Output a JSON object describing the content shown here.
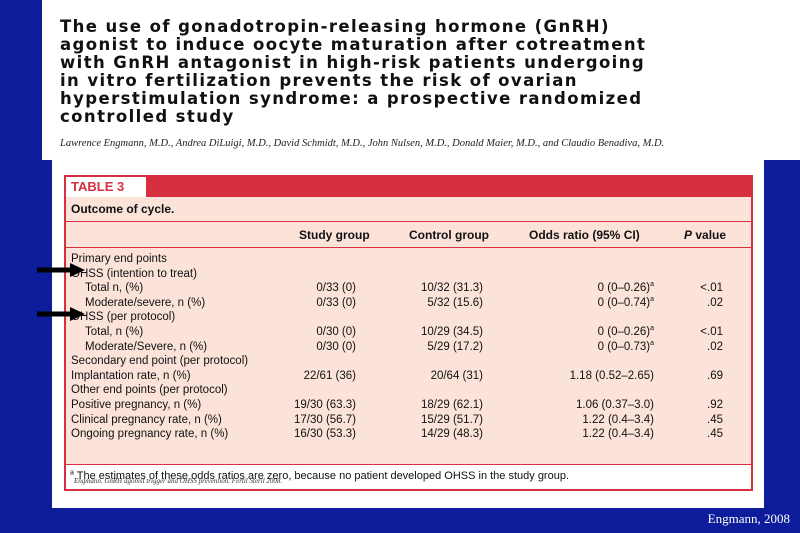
{
  "paper": {
    "title": "The use of gonadotropin-releasing hormone (GnRH)\nagonist to induce oocyte maturation after cotreatment\nwith GnRH antagonist in high-risk patients undergoing\nin vitro fertilization prevents the risk of ovarian\nhyperstimulation syndrome: a prospective randomized\ncontrolled study",
    "authors": "Lawrence Engmann, M.D., Andrea DiLuigi, M.D., David Schmidt, M.D., John Nulsen, M.D., Donald Maier, M.D., and Claudio Benadiva, M.D."
  },
  "table": {
    "label": "TABLE 3",
    "caption": "Outcome of cycle.",
    "headers": {
      "study": "Study group",
      "control": "Control group",
      "odds": "Odds ratio (95% CI)",
      "p": "P",
      "p_suffix": " value"
    },
    "rows": [
      {
        "label": "Primary end points",
        "indent": false,
        "study": "",
        "control": "",
        "odds": "",
        "sup": "",
        "p": ""
      },
      {
        "label": "OHSS (intention to treat)",
        "indent": false,
        "study": "",
        "control": "",
        "odds": "",
        "sup": "",
        "p": ""
      },
      {
        "label": "Total n, (%)",
        "indent": true,
        "study": "0/33 (0)",
        "control": "10/32 (31.3)",
        "odds": "0 (0–0.26)",
        "sup": "a",
        "p": "<.01"
      },
      {
        "label": "Moderate/severe, n (%)",
        "indent": true,
        "study": "0/33 (0)",
        "control": "5/32 (15.6)",
        "odds": "0 (0–0.74)",
        "sup": "a",
        "p": ".02"
      },
      {
        "label": "OHSS (per protocol)",
        "indent": false,
        "study": "",
        "control": "",
        "odds": "",
        "sup": "",
        "p": ""
      },
      {
        "label": "Total, n (%)",
        "indent": true,
        "study": "0/30 (0)",
        "control": "10/29 (34.5)",
        "odds": "0 (0–0.26)",
        "sup": "a",
        "p": "<.01"
      },
      {
        "label": "Moderate/Severe, n (%)",
        "indent": true,
        "study": "0/30 (0)",
        "control": "5/29 (17.2)",
        "odds": "0 (0–0.73)",
        "sup": "a",
        "p": ".02"
      },
      {
        "label": "Secondary end point (per protocol)",
        "indent": false,
        "study": "",
        "control": "",
        "odds": "",
        "sup": "",
        "p": ""
      },
      {
        "label": "Implantation rate, n (%)",
        "indent": false,
        "study": "22/61 (36)",
        "control": "20/64 (31)",
        "odds": "1.18 (0.52–2.65)",
        "sup": "",
        "p": ".69"
      },
      {
        "label": "Other end points (per protocol)",
        "indent": false,
        "study": "",
        "control": "",
        "odds": "",
        "sup": "",
        "p": ""
      },
      {
        "label": "Positive pregnancy, n (%)",
        "indent": false,
        "study": "19/30 (63.3)",
        "control": "18/29 (62.1)",
        "odds": "1.06 (0.37–3.0)",
        "sup": "",
        "p": ".92"
      },
      {
        "label": "Clinical pregnancy rate, n (%)",
        "indent": false,
        "study": "17/30 (56.7)",
        "control": "15/29 (51.7)",
        "odds": "1.22 (0.4–3.4)",
        "sup": "",
        "p": ".45"
      },
      {
        "label": "Ongoing pregnancy rate, n (%)",
        "indent": false,
        "study": "16/30 (53.3)",
        "control": "14/29 (48.3)",
        "odds": "1.22 (0.4–3.4)",
        "sup": "",
        "p": ".45"
      }
    ],
    "footnote_marker": "a",
    "footnote": " The estimates of these odds ratios are zero, because no patient developed OHSS in the study group.",
    "citation": "Engmann. GnRH agonist trigger and OHSS prevention. Fertil Steril 2008."
  },
  "credit": "Engmann, 2008",
  "colors": {
    "background": "#0d1c9a",
    "table_accent": "#d63040",
    "table_fill": "#fbe3d9"
  }
}
